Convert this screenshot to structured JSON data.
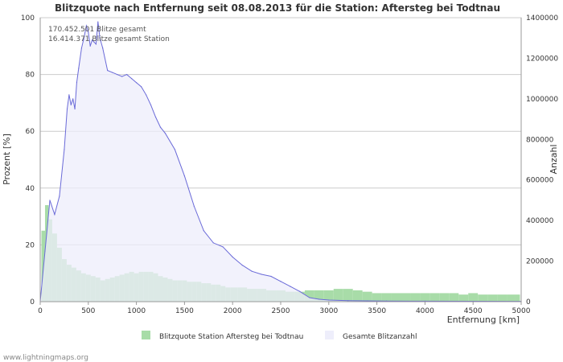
{
  "chart_data": {
    "type": "area",
    "title": "Blitzquote nach Entfernung seit 08.08.2013 für die Station: Aftersteg bei Todtnau",
    "annotations": [
      "170.452.501 Blitze gesamt",
      "16.414.371 Blitze gesamt Station"
    ],
    "xlabel": "Entfernung   [km]",
    "ylabel_left": "Prozent   [%]",
    "ylabel_right": "Anzahl",
    "xlim": [
      0,
      5000
    ],
    "ylim_left": [
      0,
      100
    ],
    "ylim_right": [
      0,
      1400000
    ],
    "x_ticks": [
      "0",
      "500",
      "1000",
      "1500",
      "2000",
      "2500",
      "3000",
      "3500",
      "4000",
      "4500",
      "5000"
    ],
    "y_left_ticks": [
      "0",
      "20",
      "40",
      "60",
      "80",
      "100"
    ],
    "y_right_ticks": [
      "0",
      "200000",
      "400000",
      "600000",
      "800000",
      "1000000",
      "1200000",
      "1400000"
    ],
    "grid": true,
    "legend_position": "bottom",
    "series": [
      {
        "name": "Blitzquote Station Aftersteg bei Todtnau",
        "axis": "left",
        "style": "bars",
        "color": "#a8dca8",
        "x": [
          25,
          75,
          100,
          150,
          200,
          250,
          300,
          350,
          400,
          450,
          500,
          550,
          600,
          650,
          700,
          750,
          800,
          850,
          900,
          950,
          1000,
          1050,
          1100,
          1150,
          1200,
          1250,
          1300,
          1350,
          1400,
          1450,
          1500,
          1550,
          1600,
          1650,
          1700,
          1750,
          1800,
          1850,
          1900,
          1950,
          2000,
          2100,
          2200,
          2300,
          2400,
          2500,
          2600,
          2700,
          2800,
          2900,
          3000,
          3100,
          3200,
          3300,
          3400,
          3500,
          3600,
          3700,
          3800,
          3900,
          4000,
          4100,
          4200,
          4300,
          4400,
          4500,
          4600,
          4700,
          4800,
          4900,
          4975
        ],
        "values": [
          25,
          34,
          29,
          24,
          19,
          15,
          13,
          12,
          11,
          10,
          9.5,
          9,
          8.5,
          7.5,
          8,
          8.5,
          9,
          9.5,
          10,
          10.5,
          10,
          10.5,
          10.5,
          10.5,
          10,
          9,
          8.5,
          8,
          7.5,
          7.5,
          7.5,
          7,
          7,
          7,
          6.5,
          6.5,
          6,
          6,
          5.5,
          5,
          5,
          5,
          4.5,
          4.5,
          4,
          4,
          3.5,
          3.5,
          4,
          4,
          4,
          4.5,
          4.5,
          4,
          3.5,
          3,
          3,
          3,
          3,
          3,
          3,
          3,
          3,
          3,
          2.5,
          3,
          2.5,
          2.5,
          2.5,
          2.5,
          2.5
        ]
      },
      {
        "name": "Gesamte Blitzanzahl",
        "axis": "right",
        "style": "area",
        "color": "#6a6ad8",
        "fill": "#eeeefb",
        "x": [
          0,
          50,
          100,
          150,
          200,
          250,
          280,
          300,
          320,
          340,
          360,
          380,
          400,
          430,
          450,
          480,
          500,
          520,
          540,
          560,
          580,
          600,
          620,
          650,
          700,
          750,
          800,
          850,
          900,
          950,
          1000,
          1050,
          1100,
          1150,
          1200,
          1250,
          1300,
          1400,
          1500,
          1600,
          1700,
          1800,
          1900,
          2000,
          2100,
          2200,
          2300,
          2400,
          2500,
          2600,
          2700,
          2800,
          2900,
          3000,
          3200,
          3400,
          3600,
          4000,
          4500,
          5000
        ],
        "values": [
          0,
          250000,
          500000,
          430000,
          520000,
          750000,
          950000,
          1020000,
          970000,
          1000000,
          950000,
          1080000,
          1150000,
          1250000,
          1290000,
          1360000,
          1330000,
          1260000,
          1290000,
          1280000,
          1270000,
          1380000,
          1300000,
          1250000,
          1140000,
          1130000,
          1120000,
          1110000,
          1120000,
          1100000,
          1080000,
          1060000,
          1020000,
          970000,
          910000,
          860000,
          830000,
          750000,
          620000,
          470000,
          350000,
          290000,
          270000,
          220000,
          180000,
          150000,
          135000,
          125000,
          100000,
          75000,
          50000,
          20000,
          12000,
          8000,
          5000,
          4000,
          3000,
          2500,
          2000,
          1500
        ]
      }
    ]
  },
  "footer": {
    "source": "www.lightningmaps.org"
  }
}
